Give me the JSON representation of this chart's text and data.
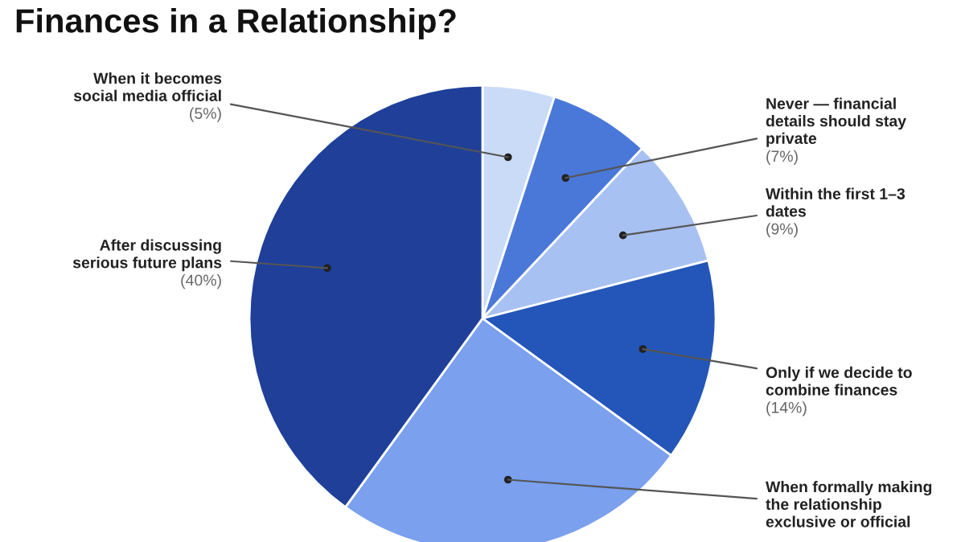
{
  "chart_data": {
    "type": "pie",
    "title": "Finances in a Relationship?",
    "categories": [
      "When it becomes\nsocial media official",
      "Never — financial\ndetails should stay\nprivate",
      "Within the first 1–3\ndates",
      "Only if we decide to\ncombine finances",
      "When formally making\nthe relationship\nexclusive or official",
      "After discussing\nserious future plans"
    ],
    "values": [
      5,
      7,
      9,
      14,
      25,
      40
    ],
    "value_labels": [
      "(5%)",
      "(7%)",
      "(9%)",
      "(14%)",
      null,
      "(40%)"
    ],
    "colors": [
      "#c9dbf7",
      "#4a78d8",
      "#a7c1f2",
      "#2356b8",
      "#7aa0ee",
      "#1f3f99"
    ]
  }
}
